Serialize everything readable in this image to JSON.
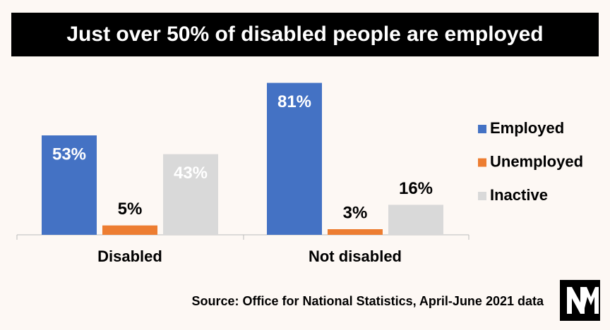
{
  "chart_data": {
    "type": "bar",
    "title": "Just over 50% of disabled people are employed",
    "categories": [
      "Disabled",
      "Not disabled"
    ],
    "series": [
      {
        "name": "Employed",
        "color": "#4472c4",
        "values": [
          53,
          81
        ],
        "value_labels": [
          "53%",
          "81%"
        ]
      },
      {
        "name": "Unemployed",
        "color": "#ed7d31",
        "values": [
          5,
          3
        ],
        "value_labels": [
          "5%",
          "3%"
        ]
      },
      {
        "name": "Inactive",
        "color": "#d9d9d9",
        "values": [
          43,
          16
        ],
        "value_labels": [
          "43%",
          "16%"
        ]
      }
    ],
    "source": "Source: Office for National Statistics, April-June 2021 data"
  }
}
